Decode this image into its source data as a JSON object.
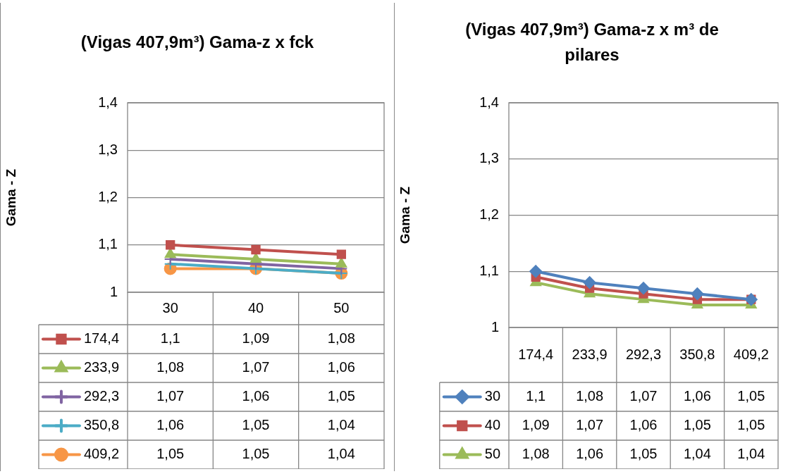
{
  "chart_data": [
    {
      "type": "line",
      "title": "(Vigas 407,9m³) Gama-z x fck",
      "ylabel": "Gama - Z",
      "categories": [
        "30",
        "40",
        "50"
      ],
      "ylim": [
        1,
        1.4
      ],
      "yticks": [
        {
          "value": 1,
          "label": "1"
        },
        {
          "value": 1.1,
          "label": "1,1"
        },
        {
          "value": 1.2,
          "label": "1,2"
        },
        {
          "value": 1.3,
          "label": "1,3"
        },
        {
          "value": 1.4,
          "label": "1,4"
        }
      ],
      "grid": "y",
      "legend": "bottom",
      "series": [
        {
          "name": "174,4",
          "color": "#c0504d",
          "marker": "square",
          "values": [
            1.1,
            1.09,
            1.08
          ],
          "value_labels": [
            "1,1",
            "1,09",
            "1,08"
          ]
        },
        {
          "name": "233,9",
          "color": "#9bbb59",
          "marker": "triangle",
          "values": [
            1.08,
            1.07,
            1.06
          ],
          "value_labels": [
            "1,08",
            "1,07",
            "1,06"
          ]
        },
        {
          "name": "292,3",
          "color": "#8064a2",
          "marker": "cross",
          "values": [
            1.07,
            1.06,
            1.05
          ],
          "value_labels": [
            "1,07",
            "1,06",
            "1,05"
          ]
        },
        {
          "name": "350,8",
          "color": "#4bacc6",
          "marker": "cross",
          "values": [
            1.06,
            1.05,
            1.04
          ],
          "value_labels": [
            "1,06",
            "1,05",
            "1,04"
          ]
        },
        {
          "name": "409,2",
          "color": "#f79646",
          "marker": "circle",
          "values": [
            1.05,
            1.05,
            1.04
          ],
          "value_labels": [
            "1,05",
            "1,05",
            "1,04"
          ]
        }
      ]
    },
    {
      "type": "line",
      "title": "(Vigas 407,9m³) Gama-z x m³ de pilares",
      "ylabel": "Gama - Z",
      "categories": [
        "174,4",
        "233,9",
        "292,3",
        "350,8",
        "409,2"
      ],
      "ylim": [
        1,
        1.4
      ],
      "yticks": [
        {
          "value": 1,
          "label": "1"
        },
        {
          "value": 1.1,
          "label": "1,1"
        },
        {
          "value": 1.2,
          "label": "1,2"
        },
        {
          "value": 1.3,
          "label": "1,3"
        },
        {
          "value": 1.4,
          "label": "1,4"
        }
      ],
      "grid": "y",
      "legend": "bottom",
      "series": [
        {
          "name": "30",
          "color": "#4f81bd",
          "marker": "diamond",
          "values": [
            1.1,
            1.08,
            1.07,
            1.06,
            1.05
          ],
          "value_labels": [
            "1,1",
            "1,08",
            "1,07",
            "1,06",
            "1,05"
          ]
        },
        {
          "name": "40",
          "color": "#c0504d",
          "marker": "square",
          "values": [
            1.09,
            1.07,
            1.06,
            1.05,
            1.05
          ],
          "value_labels": [
            "1,09",
            "1,07",
            "1,06",
            "1,05",
            "1,05"
          ]
        },
        {
          "name": "50",
          "color": "#9bbb59",
          "marker": "triangle",
          "values": [
            1.08,
            1.06,
            1.05,
            1.04,
            1.04
          ],
          "value_labels": [
            "1,08",
            "1,06",
            "1,05",
            "1,04",
            "1,04"
          ]
        }
      ]
    }
  ]
}
